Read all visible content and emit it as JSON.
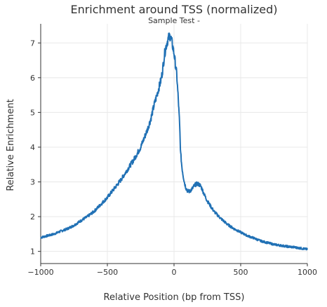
{
  "chart_data": {
    "type": "line",
    "title": "Enrichment around TSS (normalized)",
    "subtitle": "Sample Test -",
    "xlabel": "Relative Position (bp from TSS)",
    "ylabel": "Relative Enrichment",
    "xlim": [
      -1000,
      1000
    ],
    "ylim": [
      0.65,
      7.55
    ],
    "xticks": [
      -1000,
      -500,
      0,
      500,
      1000
    ],
    "xtick_labels": [
      "−1000",
      "−500",
      "0",
      "500",
      "1000"
    ],
    "yticks": [
      1,
      2,
      3,
      4,
      5,
      6,
      7
    ],
    "grid": true,
    "series": [
      {
        "color": "#2171b5",
        "x": [
          -1000,
          -950,
          -900,
          -850,
          -800,
          -750,
          -700,
          -650,
          -600,
          -550,
          -500,
          -450,
          -400,
          -350,
          -300,
          -250,
          -200,
          -175,
          -150,
          -125,
          -100,
          -90,
          -80,
          -70,
          -60,
          -50,
          -40,
          -30,
          -20,
          -10,
          0,
          10,
          20,
          30,
          40,
          50,
          60,
          70,
          80,
          90,
          100,
          110,
          120,
          130,
          140,
          150,
          160,
          175,
          190,
          200,
          210,
          225,
          250,
          275,
          300,
          350,
          400,
          450,
          500,
          550,
          600,
          650,
          700,
          750,
          800,
          850,
          900,
          950,
          1000
        ],
        "y": [
          1.4,
          1.45,
          1.5,
          1.58,
          1.65,
          1.75,
          1.88,
          2.0,
          2.15,
          2.35,
          2.55,
          2.8,
          3.05,
          3.35,
          3.65,
          4.0,
          4.5,
          4.8,
          5.2,
          5.55,
          5.9,
          6.1,
          6.4,
          6.7,
          6.9,
          7.05,
          7.15,
          7.2,
          7.1,
          6.9,
          6.7,
          6.4,
          6.1,
          5.5,
          4.8,
          3.8,
          3.4,
          3.15,
          2.95,
          2.82,
          2.75,
          2.72,
          2.74,
          2.78,
          2.82,
          2.88,
          2.92,
          2.95,
          2.92,
          2.88,
          2.8,
          2.65,
          2.45,
          2.3,
          2.15,
          1.95,
          1.78,
          1.65,
          1.55,
          1.45,
          1.38,
          1.3,
          1.25,
          1.2,
          1.17,
          1.14,
          1.12,
          1.09,
          1.06
        ]
      }
    ]
  }
}
